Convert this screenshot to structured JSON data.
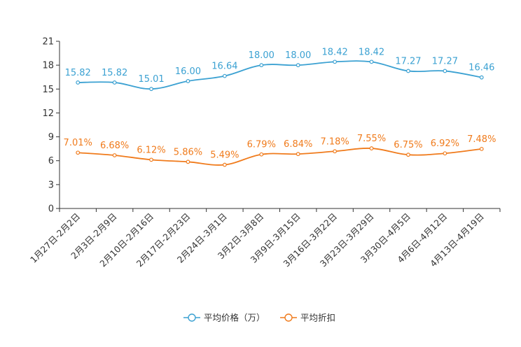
{
  "chart_data": {
    "type": "line",
    "title": "",
    "xlabel": "",
    "ylabel": "",
    "ylim": [
      0,
      21
    ],
    "yticks": [
      0,
      3,
      6,
      9,
      12,
      15,
      18,
      21
    ],
    "categories": [
      "1月27日-2月2日",
      "2月3日-2月9日",
      "2月10日-2月16日",
      "2月17日-2月23日",
      "2月24日-3月1日",
      "3月2日-3月8日",
      "3月9日-3月15日",
      "3月16日-3月22日",
      "3月23日-3月29日",
      "3月30日-4月5日",
      "4月6日-4月12日",
      "4月13日-4月19日"
    ],
    "series": [
      {
        "name": "平均价格（万）",
        "color": "#3ba1d2",
        "values": [
          15.82,
          15.82,
          15.01,
          16.0,
          16.64,
          18.0,
          18.0,
          18.42,
          18.42,
          17.27,
          17.27,
          16.46
        ],
        "labels": [
          "15.82",
          "15.82",
          "15.01",
          "16.00",
          "16.64",
          "18.00",
          "18.00",
          "18.42",
          "18.42",
          "17.27",
          "17.27",
          "16.46"
        ]
      },
      {
        "name": "平均折扣",
        "color": "#f07b1c",
        "values": [
          7.01,
          6.68,
          6.12,
          5.86,
          5.49,
          6.79,
          6.84,
          7.18,
          7.55,
          6.75,
          6.92,
          7.48
        ],
        "labels": [
          "7.01%",
          "6.68%",
          "6.12%",
          "5.86%",
          "5.49%",
          "6.79%",
          "6.84%",
          "7.18%",
          "7.55%",
          "6.75%",
          "6.92%",
          "7.48%"
        ]
      }
    ],
    "legend_position": "bottom-center"
  }
}
